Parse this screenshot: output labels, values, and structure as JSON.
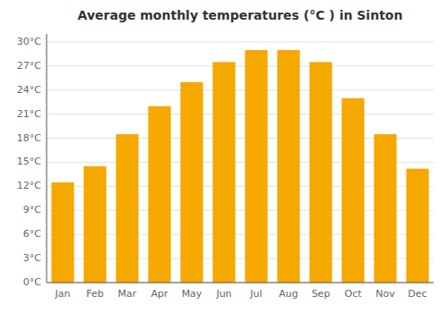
{
  "chart_data": {
    "type": "bar",
    "title": "Average monthly temperatures (°C ) in Sinton",
    "categories": [
      "Jan",
      "Feb",
      "Mar",
      "Apr",
      "May",
      "Jun",
      "Jul",
      "Aug",
      "Sep",
      "Oct",
      "Nov",
      "Dec"
    ],
    "values": [
      12.5,
      14.5,
      18.5,
      22.0,
      25.0,
      27.5,
      29.0,
      29.0,
      27.5,
      23.0,
      18.5,
      14.2
    ],
    "color": "#F5A800",
    "ylim": [
      0,
      31
    ],
    "yticks": [
      {
        "value": 0,
        "label": "0°C"
      },
      {
        "value": 3,
        "label": "3°C"
      },
      {
        "value": 6,
        "label": "6°C"
      },
      {
        "value": 9,
        "label": "9°C"
      },
      {
        "value": 12,
        "label": "12°C"
      },
      {
        "value": 15,
        "label": "15°C"
      },
      {
        "value": 18,
        "label": "18°C"
      },
      {
        "value": 21,
        "label": "21°C"
      },
      {
        "value": 24,
        "label": "24°C"
      },
      {
        "value": 27,
        "label": "27°C"
      },
      {
        "value": 30,
        "label": "30°C"
      }
    ],
    "grid": true
  }
}
